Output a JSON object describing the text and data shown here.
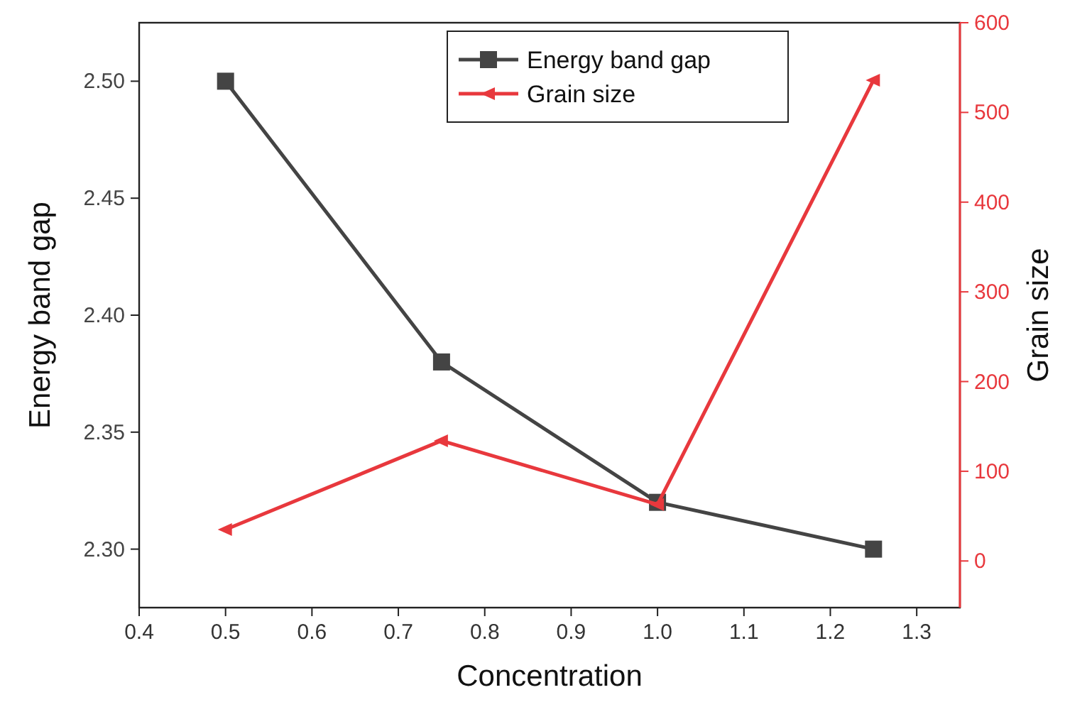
{
  "chart_data": {
    "type": "line",
    "xlabel": "Concentration",
    "ylabel": "Energy band gap",
    "y2label": "Grain size",
    "x": [
      0.5,
      0.75,
      1.0,
      1.25
    ],
    "xlim": [
      0.4,
      1.35
    ],
    "xticks": [
      {
        "value": 0.4,
        "label": "0.4"
      },
      {
        "value": 0.5,
        "label": "0.5"
      },
      {
        "value": 0.6,
        "label": "0.6"
      },
      {
        "value": 0.7,
        "label": "0.7"
      },
      {
        "value": 0.8,
        "label": "0.8"
      },
      {
        "value": 0.9,
        "label": "0.9"
      },
      {
        "value": 1.0,
        "label": "1.0"
      },
      {
        "value": 1.1,
        "label": "1.1"
      },
      {
        "value": 1.2,
        "label": "1.2"
      },
      {
        "value": 1.3,
        "label": "1.3"
      }
    ],
    "ylim": [
      2.275,
      2.525
    ],
    "yticks": [
      {
        "value": 2.3,
        "label": "2.30"
      },
      {
        "value": 2.35,
        "label": "2.35"
      },
      {
        "value": 2.4,
        "label": "2.40"
      },
      {
        "value": 2.45,
        "label": "2.45"
      },
      {
        "value": 2.5,
        "label": "2.50"
      }
    ],
    "y2lim": [
      -52,
      600
    ],
    "y2ticks": [
      0,
      100,
      200,
      300,
      400,
      500,
      600
    ],
    "grid": false,
    "legend": "top",
    "line_style": "solid",
    "series": [
      {
        "name": "Energy band gap",
        "color": "#444444",
        "marker": "square",
        "values": [
          2.5,
          2.38,
          2.32,
          2.3
        ]
      },
      {
        "name": "Grain size",
        "color": "#e8383d",
        "marker": "triangle",
        "axis": "y2",
        "values": [
          35,
          134,
          63,
          536
        ]
      }
    ]
  }
}
